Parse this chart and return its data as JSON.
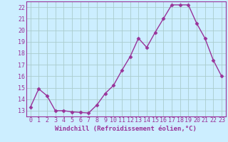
{
  "x": [
    0,
    1,
    2,
    3,
    4,
    5,
    6,
    7,
    8,
    9,
    10,
    11,
    12,
    13,
    14,
    15,
    16,
    17,
    18,
    19,
    20,
    21,
    22,
    23
  ],
  "y": [
    13.3,
    14.9,
    14.3,
    13.0,
    13.0,
    12.9,
    12.85,
    12.8,
    13.5,
    14.5,
    15.2,
    16.5,
    17.7,
    19.3,
    18.5,
    19.8,
    21.0,
    22.2,
    22.2,
    22.2,
    20.6,
    19.3,
    17.4,
    16.0
  ],
  "line_color": "#993399",
  "marker": "D",
  "marker_size": 2.5,
  "xlabel": "Windchill (Refroidissement éolien,°C)",
  "ylim": [
    12.5,
    22.5
  ],
  "yticks": [
    13,
    14,
    15,
    16,
    17,
    18,
    19,
    20,
    21,
    22
  ],
  "xticks": [
    0,
    1,
    2,
    3,
    4,
    5,
    6,
    7,
    8,
    9,
    10,
    11,
    12,
    13,
    14,
    15,
    16,
    17,
    18,
    19,
    20,
    21,
    22,
    23
  ],
  "background_color": "#cceeff",
  "grid_color": "#aacccc",
  "label_color": "#993399",
  "tick_color": "#993399",
  "xlabel_fontsize": 6.5,
  "tick_fontsize": 6.0,
  "line_width": 1.0
}
